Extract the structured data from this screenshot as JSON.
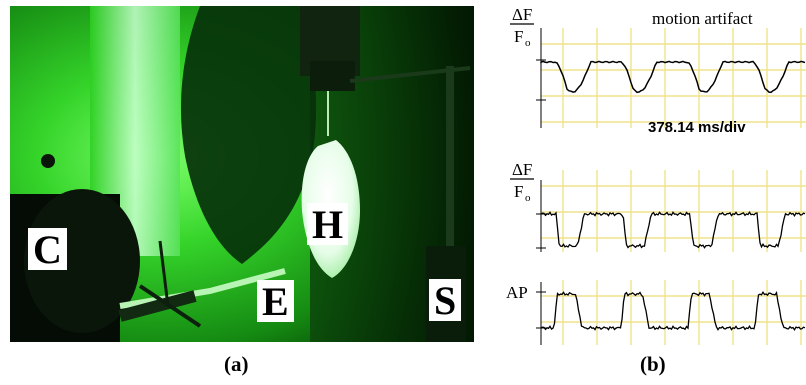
{
  "panel_a": {
    "labels": {
      "camera": "C",
      "heart": "H",
      "electrode": "E",
      "stimulator": "S"
    },
    "caption": "(a)"
  },
  "panel_b": {
    "caption": "(b)",
    "trace_1": {
      "ylabel_top": "ΔF",
      "ylabel_bottom": "F",
      "ylabel_sub": "o",
      "annotation": "motion artifact",
      "scale_label": "378.14 ms/div"
    },
    "trace_2": {
      "ylabel_top": "ΔF",
      "ylabel_bottom": "F",
      "ylabel_sub": "o"
    },
    "trace_3": {
      "ylabel": "AP"
    }
  },
  "colors": {
    "grid": "#f0e38a",
    "trace": "#000000",
    "photo_green": "#27c21e",
    "photo_dark": "#062a06"
  }
}
